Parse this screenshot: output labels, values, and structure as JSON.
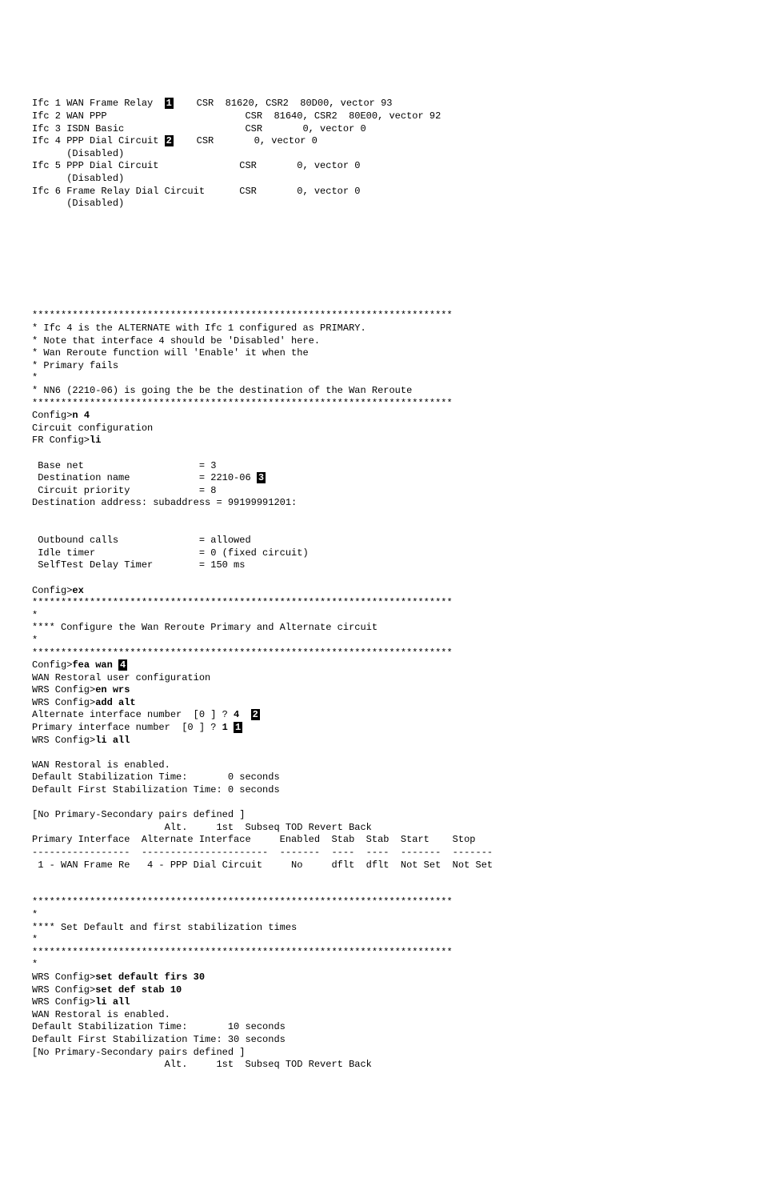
{
  "interfaces": {
    "ifc1": "Ifc 1 WAN Frame Relay",
    "ifc1_marker": "1",
    "ifc1_rest": "    CSR  81620, CSR2  80D00, vector 93",
    "ifc2": "Ifc 2 WAN PPP                        CSR  81640, CSR2  80E00, vector 92",
    "ifc3": "Ifc 3 ISDN Basic                     CSR       0, vector 0",
    "ifc4": "Ifc 4 PPP Dial Circuit",
    "ifc4_marker": "2",
    "ifc4_rest": "    CSR       0, vector 0",
    "ifc4_disabled": "      (Disabled)",
    "ifc5": "Ifc 5 PPP Dial Circuit              CSR       0, vector 0",
    "ifc5_disabled": "      (Disabled)",
    "ifc6": "Ifc 6 Frame Relay Dial Circuit      CSR       0, vector 0",
    "ifc6_disabled": "      (Disabled)"
  },
  "separator": "*************************************************************************",
  "comments": {
    "c1": "* Ifc 4 is the ALTERNATE with Ifc 1 configured as PRIMARY.",
    "c2": "* Note that interface 4 should be 'Disabled' here.",
    "c3": "* Wan Reroute function will 'Enable' it when the",
    "c4": "* Primary fails",
    "c5": "*",
    "c6": "* NN6 (2210-06) is going the be the destination of the Wan Reroute"
  },
  "config": {
    "prompt1": "Config>",
    "cmd_n4": "n 4",
    "circuit_config": "Circuit configuration",
    "fr_prompt": "FR Config>",
    "cmd_li": "li",
    "base_net": " Base net                    = 3",
    "dest_name": " Destination name            = 2210-06",
    "dest_marker": "3",
    "circuit_priority": " Circuit priority            = 8",
    "dest_addr": "Destination address: subaddress = 99199991201:",
    "outbound": " Outbound calls              = allowed",
    "idle_timer": " Idle timer                  = 0 (fixed circuit)",
    "selftest": " SelfTest Delay Timer        = 150 ms",
    "cmd_ex": "ex"
  },
  "wan_config": {
    "comment_star": "*",
    "comment_configure": "**** Configure the Wan Reroute Primary and Alternate circuit",
    "cmd_fea_wan": "fea wan ",
    "fea_marker": "4",
    "wan_restoral": "WAN Restoral user configuration",
    "wrs_prompt": "WRS Config>",
    "cmd_en_wrs": "en wrs",
    "cmd_add_alt": "add alt",
    "alt_interface": "Alternate interface number  [0 ] ? ",
    "alt_val": "4 ",
    "alt_marker": "2",
    "primary_interface": "Primary interface number  [0 ] ? ",
    "primary_val": "1",
    "primary_marker": "1",
    "cmd_li_all": "li all",
    "wan_enabled": "WAN Restoral is enabled.",
    "default_stab": "Default Stabilization Time:       0 seconds",
    "default_first_stab": "Default First Stabilization Time: 0 seconds",
    "no_primary": "[No Primary-Secondary pairs defined ]",
    "header1": "                       Alt.     1st  Subseq TOD Revert Back",
    "header2": "Primary Interface  Alternate Interface     Enabled  Stab  Stab  Start    Stop",
    "header3": "-----------------  ----------------------  -------  ----  ----  -------  -------",
    "row1": " 1 - WAN Frame Re   4 - PPP Dial Circuit     No     dflt  dflt  Not Set  Not Set"
  },
  "stab_config": {
    "comment_set": "**** Set Default and first stabilization times",
    "cmd_set_default": "set default firs 30",
    "cmd_set_def_stab": "set def stab 10",
    "wan_enabled2": "WAN Restoral is enabled.",
    "default_stab2": "Default Stabilization Time:       10 seconds",
    "default_first_stab2": "Default First Stabilization Time: 30 seconds",
    "no_primary2": "[No Primary-Secondary pairs defined ]",
    "header_repeat": "                       Alt.     1st  Subseq TOD Revert Back"
  }
}
